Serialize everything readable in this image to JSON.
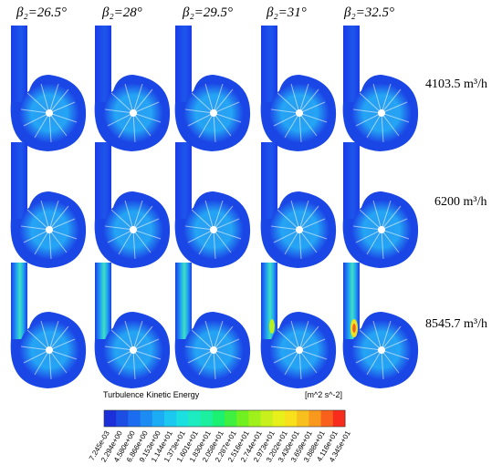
{
  "columns": [
    {
      "beta_label": "β₂=26.5°"
    },
    {
      "beta_label": "β₂=28°"
    },
    {
      "beta_label": "β₂=29.5°"
    },
    {
      "beta_label": "β₂=31°"
    },
    {
      "beta_label": "β₂=32.5°"
    }
  ],
  "rows": [
    {
      "flow_label": "4103.5 m³/h"
    },
    {
      "flow_label": "6200 m³/h"
    },
    {
      "flow_label": "8545.7 m³/h"
    }
  ],
  "legend": {
    "title": "Turbulence Kinetic Energy",
    "unit": "[m^2 s^-2]",
    "ticks": [
      "7.245e-03",
      "2.294e+00",
      "4.580e+00",
      "6.866e+00",
      "9.153e+00",
      "1.144e+01",
      "1.373e+01",
      "1.601e+01",
      "1.830e+01",
      "2.058e+01",
      "2.287e+01",
      "2.516e+01",
      "2.744e+01",
      "2.973e+01",
      "3.202e+01",
      "3.430e+01",
      "3.659e+01",
      "3.888e+01",
      "4.116e+01",
      "4.345e+01"
    ],
    "colors": [
      "#1c2fd8",
      "#1c4ee4",
      "#1c6cf0",
      "#1c8cf2",
      "#1cacf4",
      "#1cc8f0",
      "#1ce0e0",
      "#1cecc0",
      "#1cf0a0",
      "#1cf070",
      "#40f040",
      "#70f020",
      "#a0f01c",
      "#c8f01c",
      "#e8f01c",
      "#f8e01c",
      "#f8c01c",
      "#f8981c",
      "#f8601c",
      "#f82c1c"
    ],
    "unit_ticks_count": 20
  },
  "accent_colors": {
    "field_low": "#1a3ce8",
    "field_mid": "#25b8f5",
    "hot_spot": "#f0e020"
  }
}
